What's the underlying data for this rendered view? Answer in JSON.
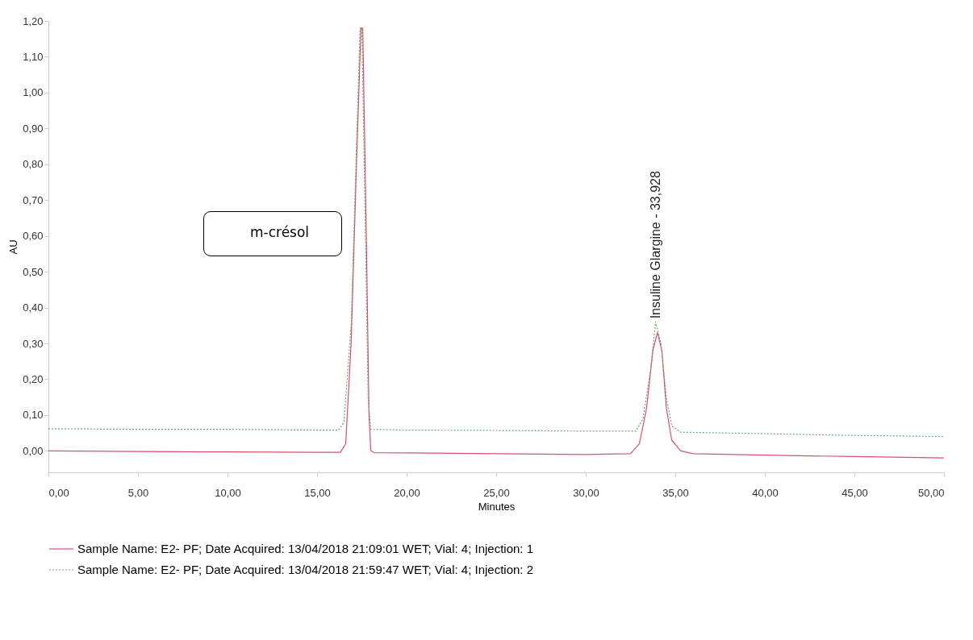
{
  "chart_data": {
    "type": "line",
    "xlabel": "Minutes",
    "ylabel": "AU",
    "xlim": [
      0,
      50
    ],
    "ylim": [
      -0.06,
      1.2
    ],
    "xticks": [
      {
        "value": 0,
        "label": "0,00"
      },
      {
        "value": 5,
        "label": "5,00"
      },
      {
        "value": 10,
        "label": "10,00"
      },
      {
        "value": 15,
        "label": "15,00"
      },
      {
        "value": 20,
        "label": "20,00"
      },
      {
        "value": 25,
        "label": "25,00"
      },
      {
        "value": 30,
        "label": "30,00"
      },
      {
        "value": 35,
        "label": "35,00"
      },
      {
        "value": 40,
        "label": "40,00"
      },
      {
        "value": 45,
        "label": "45,00"
      },
      {
        "value": 50,
        "label": "50,00"
      }
    ],
    "yticks": [
      {
        "value": 0,
        "label": "0,00"
      },
      {
        "value": 0.1,
        "label": "0,10"
      },
      {
        "value": 0.2,
        "label": "0,20"
      },
      {
        "value": 0.3,
        "label": "0,30"
      },
      {
        "value": 0.4,
        "label": "0,40"
      },
      {
        "value": 0.5,
        "label": "0,50"
      },
      {
        "value": 0.6,
        "label": "0,60"
      },
      {
        "value": 0.7,
        "label": "0,70"
      },
      {
        "value": 0.8,
        "label": "0,80"
      },
      {
        "value": 0.9,
        "label": "0,90"
      },
      {
        "value": 1.0,
        "label": "1,00"
      },
      {
        "value": 1.1,
        "label": "1,10"
      },
      {
        "value": 1.2,
        "label": "1,20"
      }
    ],
    "legend": "bottom",
    "annotations": [
      "m-crésol",
      {
        "text": "Insuline Glargine - 33,928",
        "x": 33.928,
        "y": 0.36
      }
    ],
    "series": [
      {
        "name": "Sample Name: E2- PF;   Date Acquired: 13/04/2018 21:09:01 WET;   Vial: 4; Injection: 1",
        "color": "#d9506a",
        "line_style": "solid",
        "x": [
          0,
          5,
          10,
          15,
          16.3,
          16.6,
          16.9,
          17.2,
          17.45,
          17.55,
          17.75,
          17.9,
          18.0,
          18.2,
          25,
          30,
          32.5,
          33.0,
          33.4,
          33.75,
          34.0,
          34.25,
          34.5,
          34.8,
          35.3,
          36,
          40,
          45,
          50
        ],
        "values": [
          0,
          -0.002,
          -0.003,
          -0.004,
          -0.004,
          0.02,
          0.3,
          0.8,
          1.18,
          1.18,
          0.6,
          0.1,
          0.0,
          -0.005,
          -0.008,
          -0.01,
          -0.008,
          0.02,
          0.12,
          0.28,
          0.33,
          0.28,
          0.12,
          0.03,
          0.0,
          -0.008,
          -0.012,
          -0.016,
          -0.02
        ]
      },
      {
        "name": "Sample Name: E2- PF;   Date Acquired: 13/04/2018 21:59:47 WET;   Vial: 4; Injection: 2",
        "color": "#6aa86a",
        "line_style": "dotted",
        "x": [
          0,
          5,
          10,
          15,
          16.2,
          16.5,
          16.9,
          17.2,
          17.4,
          17.5,
          17.7,
          17.85,
          18.0,
          20,
          25,
          30,
          32.8,
          33.2,
          33.6,
          33.9,
          34.2,
          34.5,
          34.8,
          35.3,
          40,
          45,
          50
        ],
        "values": [
          0.062,
          0.06,
          0.06,
          0.058,
          0.058,
          0.08,
          0.35,
          0.85,
          1.18,
          1.18,
          0.6,
          0.15,
          0.06,
          0.058,
          0.057,
          0.055,
          0.055,
          0.09,
          0.22,
          0.36,
          0.3,
          0.15,
          0.07,
          0.052,
          0.048,
          0.043,
          0.04
        ]
      }
    ]
  }
}
